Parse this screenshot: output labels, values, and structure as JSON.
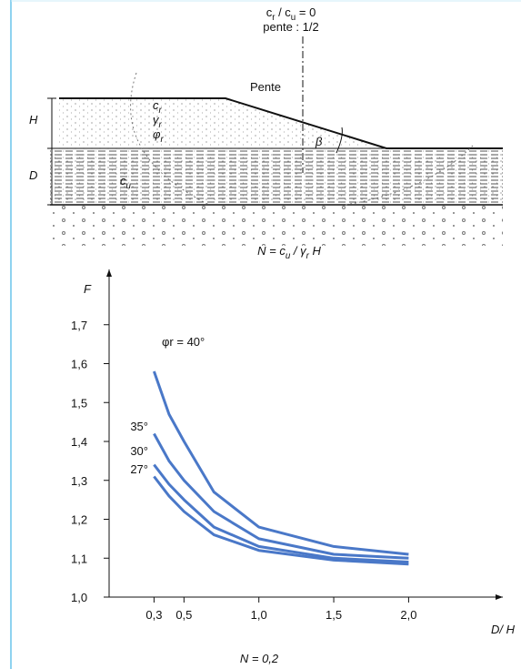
{
  "diagram": {
    "labels": [
      {
        "parts": [
          "c",
          "r",
          " / c",
          "u",
          " = 0"
        ]
      },
      {
        "parts": [
          "pente : 1/2"
        ]
      },
      {
        "parts": [
          "Pente"
        ]
      },
      {
        "parts": [
          "H"
        ]
      },
      {
        "parts": [
          "D"
        ]
      },
      {
        "parts": [
          "c",
          "r"
        ]
      },
      {
        "parts": [
          "γ",
          "r"
        ]
      },
      {
        "parts": [
          "φ",
          "r"
        ]
      },
      {
        "parts": [
          "c",
          "u"
        ]
      },
      {
        "parts": [
          "β"
        ]
      },
      {
        "parts": [
          "N = c",
          "u",
          " / γ",
          "r",
          " H"
        ]
      }
    ]
  },
  "chart_data": {
    "type": "line",
    "y_label": "F",
    "x_label": "D/ H",
    "caption": "N = 0,2",
    "x": [
      0.3,
      0.4,
      0.5,
      0.7,
      1.0,
      1.5,
      2.0
    ],
    "series": [
      {
        "name": "φr = 40°",
        "color": "#4a78c8",
        "values": [
          1.58,
          1.47,
          1.4,
          1.27,
          1.18,
          1.13,
          1.11
        ]
      },
      {
        "name": "35°",
        "color": "#4a78c8",
        "values": [
          1.42,
          1.35,
          1.3,
          1.22,
          1.15,
          1.11,
          1.1
        ]
      },
      {
        "name": "30°",
        "color": "#4a78c8",
        "values": [
          1.34,
          1.29,
          1.25,
          1.18,
          1.13,
          1.1,
          1.09
        ]
      },
      {
        "name": "27°",
        "color": "#4a78c8",
        "values": [
          1.31,
          1.26,
          1.22,
          1.16,
          1.12,
          1.095,
          1.085
        ]
      }
    ],
    "xlim": [
      0,
      2.55
    ],
    "ylim": [
      1.0,
      1.8
    ],
    "xticks": [
      {
        "value": 0.3,
        "label": "0,3"
      },
      {
        "value": 0.5,
        "label": "0,5"
      },
      {
        "value": 1.0,
        "label": "1,0"
      },
      {
        "value": 1.5,
        "label": "1,5"
      },
      {
        "value": 2.0,
        "label": "2,0"
      }
    ],
    "yticks": [
      {
        "value": 1.0,
        "label": "1,0"
      },
      {
        "value": 1.1,
        "label": "1,1"
      },
      {
        "value": 1.2,
        "label": "1,2"
      },
      {
        "value": 1.3,
        "label": "1,3"
      },
      {
        "value": 1.4,
        "label": "1,4"
      },
      {
        "value": 1.5,
        "label": "1,5"
      },
      {
        "value": 1.6,
        "label": "1,6"
      },
      {
        "value": 1.7,
        "label": "1,7"
      }
    ]
  }
}
